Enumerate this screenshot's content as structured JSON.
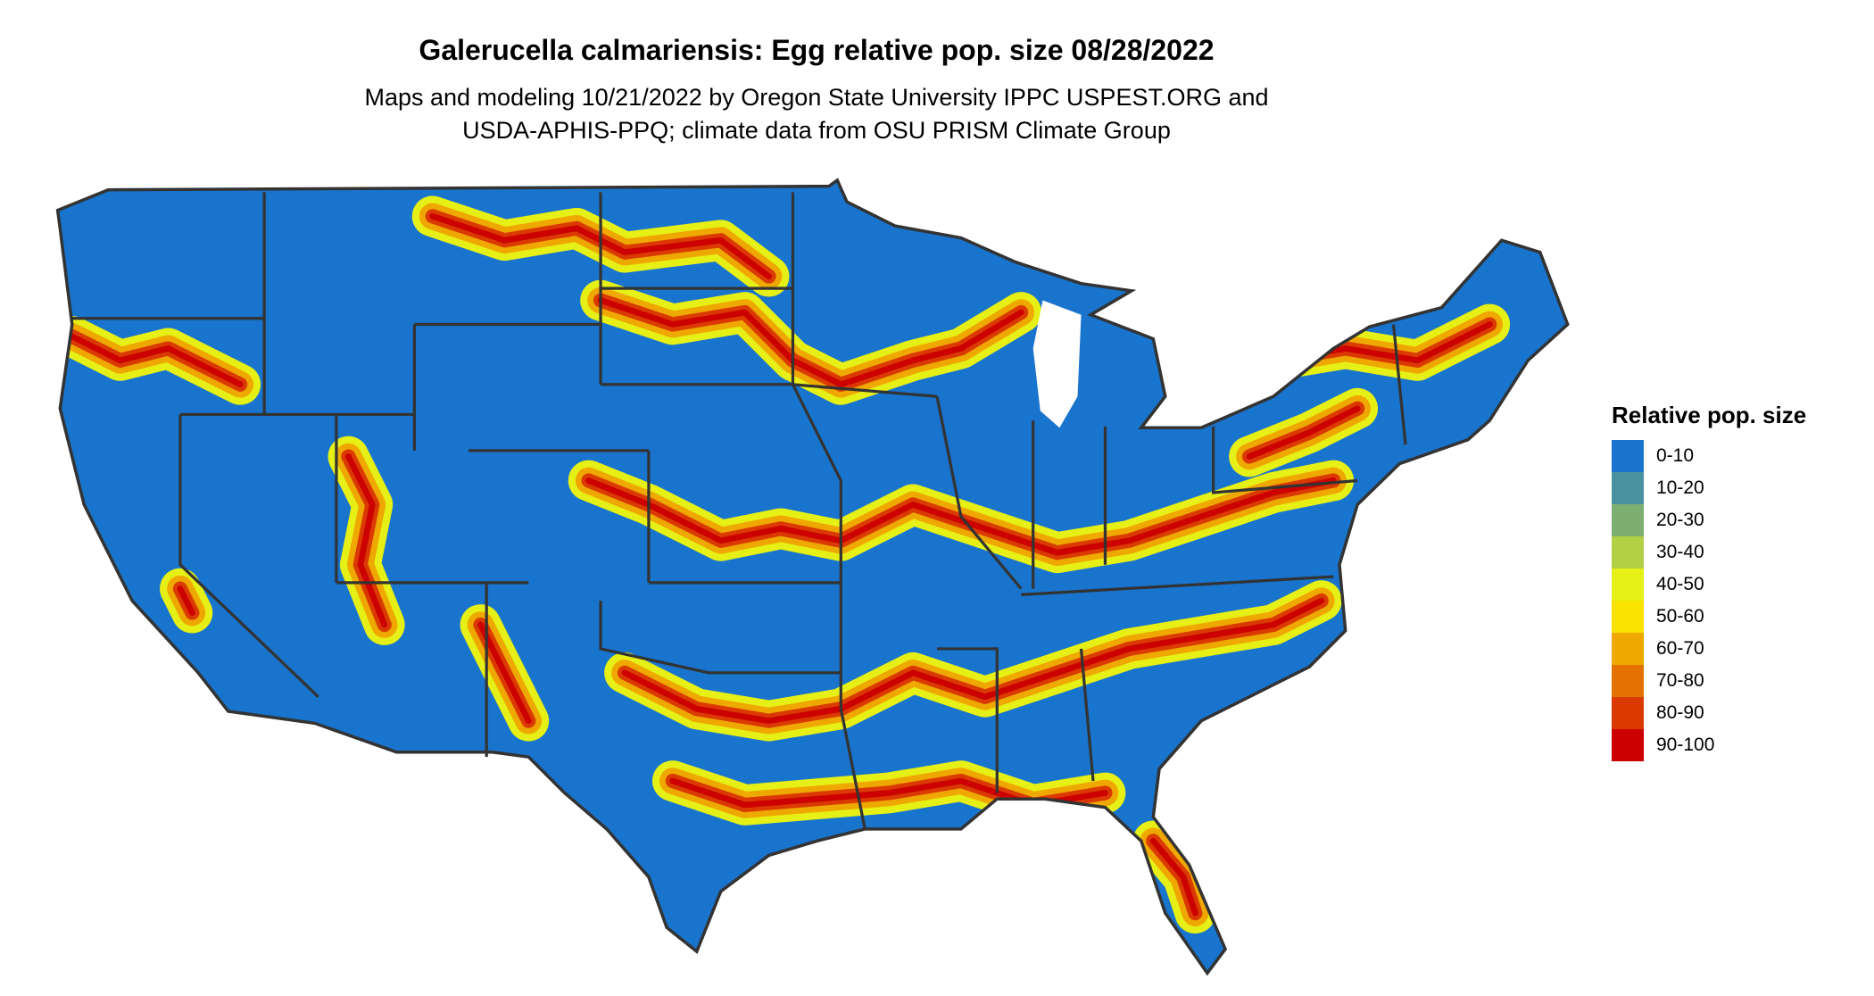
{
  "title": "Galerucella calmariensis: Egg relative pop. size 08/28/2022",
  "subtitle": [
    "Maps and modeling 10/21/2022 by Oregon State University IPPC USPEST.ORG and",
    "USDA-APHIS-PPQ; climate data from OSU PRISM Climate Group"
  ],
  "legend": {
    "title": "Relative pop. size",
    "items": [
      {
        "label": "0-10",
        "color": "#1874CD"
      },
      {
        "label": "10-20",
        "color": "#4A92A0"
      },
      {
        "label": "20-30",
        "color": "#7DAF73"
      },
      {
        "label": "30-40",
        "color": "#B2D046"
      },
      {
        "label": "40-50",
        "color": "#E6F016"
      },
      {
        "label": "50-60",
        "color": "#F9E100"
      },
      {
        "label": "60-70",
        "color": "#EEA800"
      },
      {
        "label": "70-80",
        "color": "#E37200"
      },
      {
        "label": "80-90",
        "color": "#DA3A00"
      },
      {
        "label": "90-100",
        "color": "#CD0000"
      }
    ]
  },
  "map": {
    "region": "Contiguous United States",
    "background_color": "#1874CD",
    "border_color": "#333333"
  }
}
